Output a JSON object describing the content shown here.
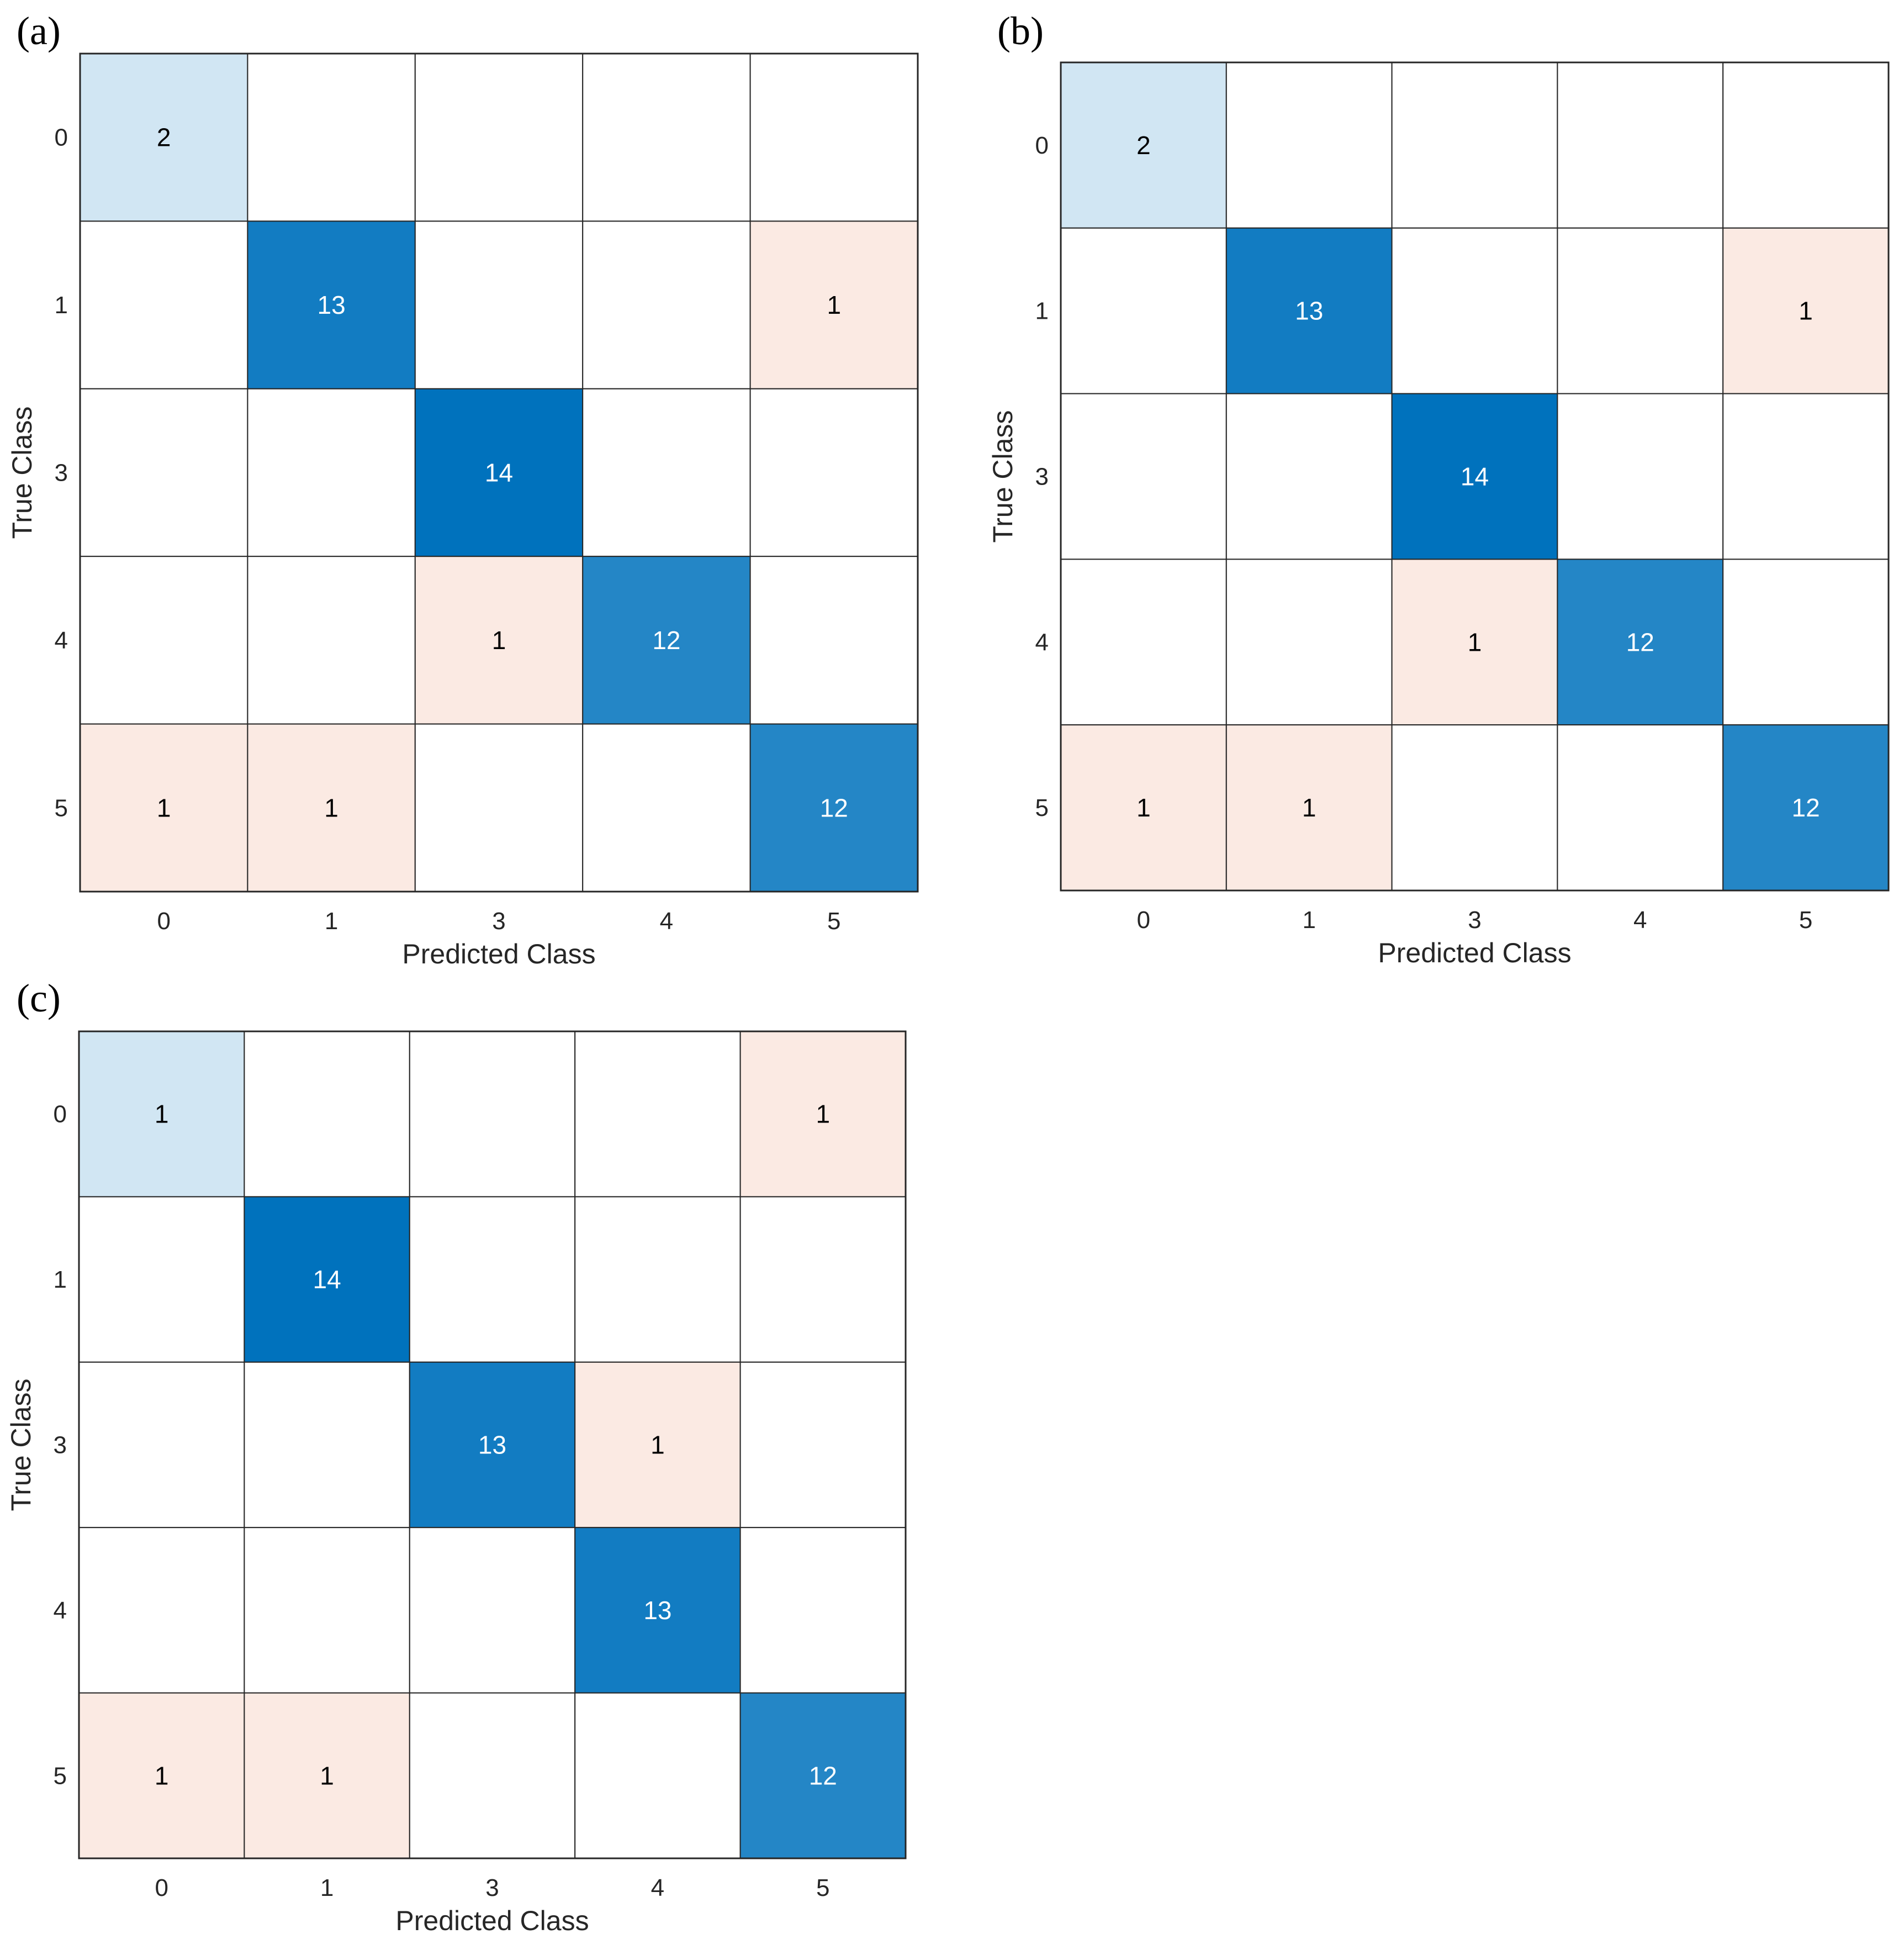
{
  "chart_data": [
    {
      "type": "heatmap",
      "panel": "(a)",
      "xlabel": "Predicted Class",
      "ylabel": "True Class",
      "x_categories": [
        "0",
        "1",
        "3",
        "4",
        "5"
      ],
      "y_categories": [
        "0",
        "1",
        "3",
        "4",
        "5"
      ],
      "matrix": [
        [
          2,
          0,
          0,
          0,
          0
        ],
        [
          0,
          13,
          0,
          0,
          1
        ],
        [
          0,
          0,
          14,
          0,
          0
        ],
        [
          0,
          0,
          1,
          12,
          0
        ],
        [
          1,
          1,
          0,
          0,
          12
        ]
      ]
    },
    {
      "type": "heatmap",
      "panel": "(b)",
      "xlabel": "Predicted Class",
      "ylabel": "True Class",
      "x_categories": [
        "0",
        "1",
        "3",
        "4",
        "5"
      ],
      "y_categories": [
        "0",
        "1",
        "3",
        "4",
        "5"
      ],
      "matrix": [
        [
          2,
          0,
          0,
          0,
          0
        ],
        [
          0,
          13,
          0,
          0,
          1
        ],
        [
          0,
          0,
          14,
          0,
          0
        ],
        [
          0,
          0,
          1,
          12,
          0
        ],
        [
          1,
          1,
          0,
          0,
          12
        ]
      ]
    },
    {
      "type": "heatmap",
      "panel": "(c)",
      "xlabel": "Predicted Class",
      "ylabel": "True Class",
      "x_categories": [
        "0",
        "1",
        "3",
        "4",
        "5"
      ],
      "y_categories": [
        "0",
        "1",
        "3",
        "4",
        "5"
      ],
      "matrix": [
        [
          1,
          0,
          0,
          0,
          1
        ],
        [
          0,
          14,
          0,
          0,
          0
        ],
        [
          0,
          0,
          13,
          1,
          0
        ],
        [
          0,
          0,
          0,
          13,
          0
        ],
        [
          1,
          1,
          0,
          0,
          12
        ]
      ]
    }
  ],
  "colors": {
    "diag_max": "#0072bd",
    "diag_min": "#ffffff",
    "off_diag": "#fbeae3",
    "grid": "#262626",
    "text_dark": "#000000",
    "text_light": "#ffffff",
    "tick_text": "#262626"
  }
}
